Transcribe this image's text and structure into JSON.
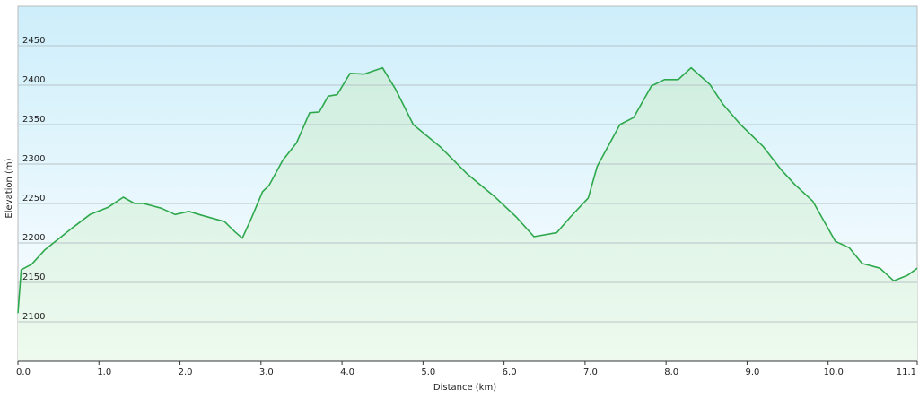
{
  "chart_data": {
    "type": "area",
    "x_label": "Distance  (km)",
    "y_label": "Elevation (m)",
    "x": [
      0,
      0.04,
      0.17,
      0.33,
      0.5,
      0.67,
      0.89,
      1.11,
      1.3,
      1.44,
      1.55,
      1.77,
      1.94,
      2.11,
      2.27,
      2.55,
      2.68,
      2.77,
      2.88,
      3.02,
      3.1,
      3.27,
      3.44,
      3.6,
      3.72,
      3.83,
      3.94,
      4.1,
      4.27,
      4.5,
      4.66,
      4.88,
      5.21,
      5.54,
      5.88,
      6.15,
      6.37,
      6.65,
      6.82,
      7.04,
      7.15,
      7.43,
      7.6,
      7.82,
      7.98,
      8.15,
      8.31,
      8.54,
      8.7,
      8.92,
      9.2,
      9.42,
      9.59,
      9.81,
      10.09,
      10.26,
      10.42,
      10.64,
      10.81,
      10.98,
      11.1
    ],
    "values": [
      2111,
      2166,
      2173,
      2191,
      2205,
      2219,
      2236,
      2245,
      2258,
      2250,
      2250,
      2244,
      2236,
      2240,
      2235,
      2227,
      2214,
      2206,
      2231,
      2265,
      2273,
      2305,
      2327,
      2365,
      2366,
      2386,
      2388,
      2415,
      2414,
      2422,
      2395,
      2350,
      2322,
      2288,
      2259,
      2233,
      2208,
      2213,
      2233,
      2257,
      2297,
      2350,
      2359,
      2399,
      2407,
      2407,
      2422,
      2401,
      2376,
      2350,
      2322,
      2293,
      2274,
      2253,
      2202,
      2194,
      2174,
      2168,
      2152,
      2159,
      2168
    ],
    "color": "#2ea84c",
    "xlim": [
      0,
      11.1
    ],
    "xticks": [
      {
        "value": 0,
        "label": "0.0"
      },
      {
        "value": 1,
        "label": "1.0"
      },
      {
        "value": 2,
        "label": "2.0"
      },
      {
        "value": 3,
        "label": "3.0"
      },
      {
        "value": 4,
        "label": "4.0"
      },
      {
        "value": 5,
        "label": "5.0"
      },
      {
        "value": 6,
        "label": "6.0"
      },
      {
        "value": 7,
        "label": "7.0"
      },
      {
        "value": 8,
        "label": "8.0"
      },
      {
        "value": 9,
        "label": "9.0"
      },
      {
        "value": 10,
        "label": "10.0"
      },
      {
        "value": 11.1,
        "label": "11.1"
      }
    ],
    "ylim": [
      2050,
      2500
    ],
    "yticks": [
      2100,
      2150,
      2200,
      2250,
      2300,
      2350,
      2400,
      2450
    ],
    "grid": true
  }
}
